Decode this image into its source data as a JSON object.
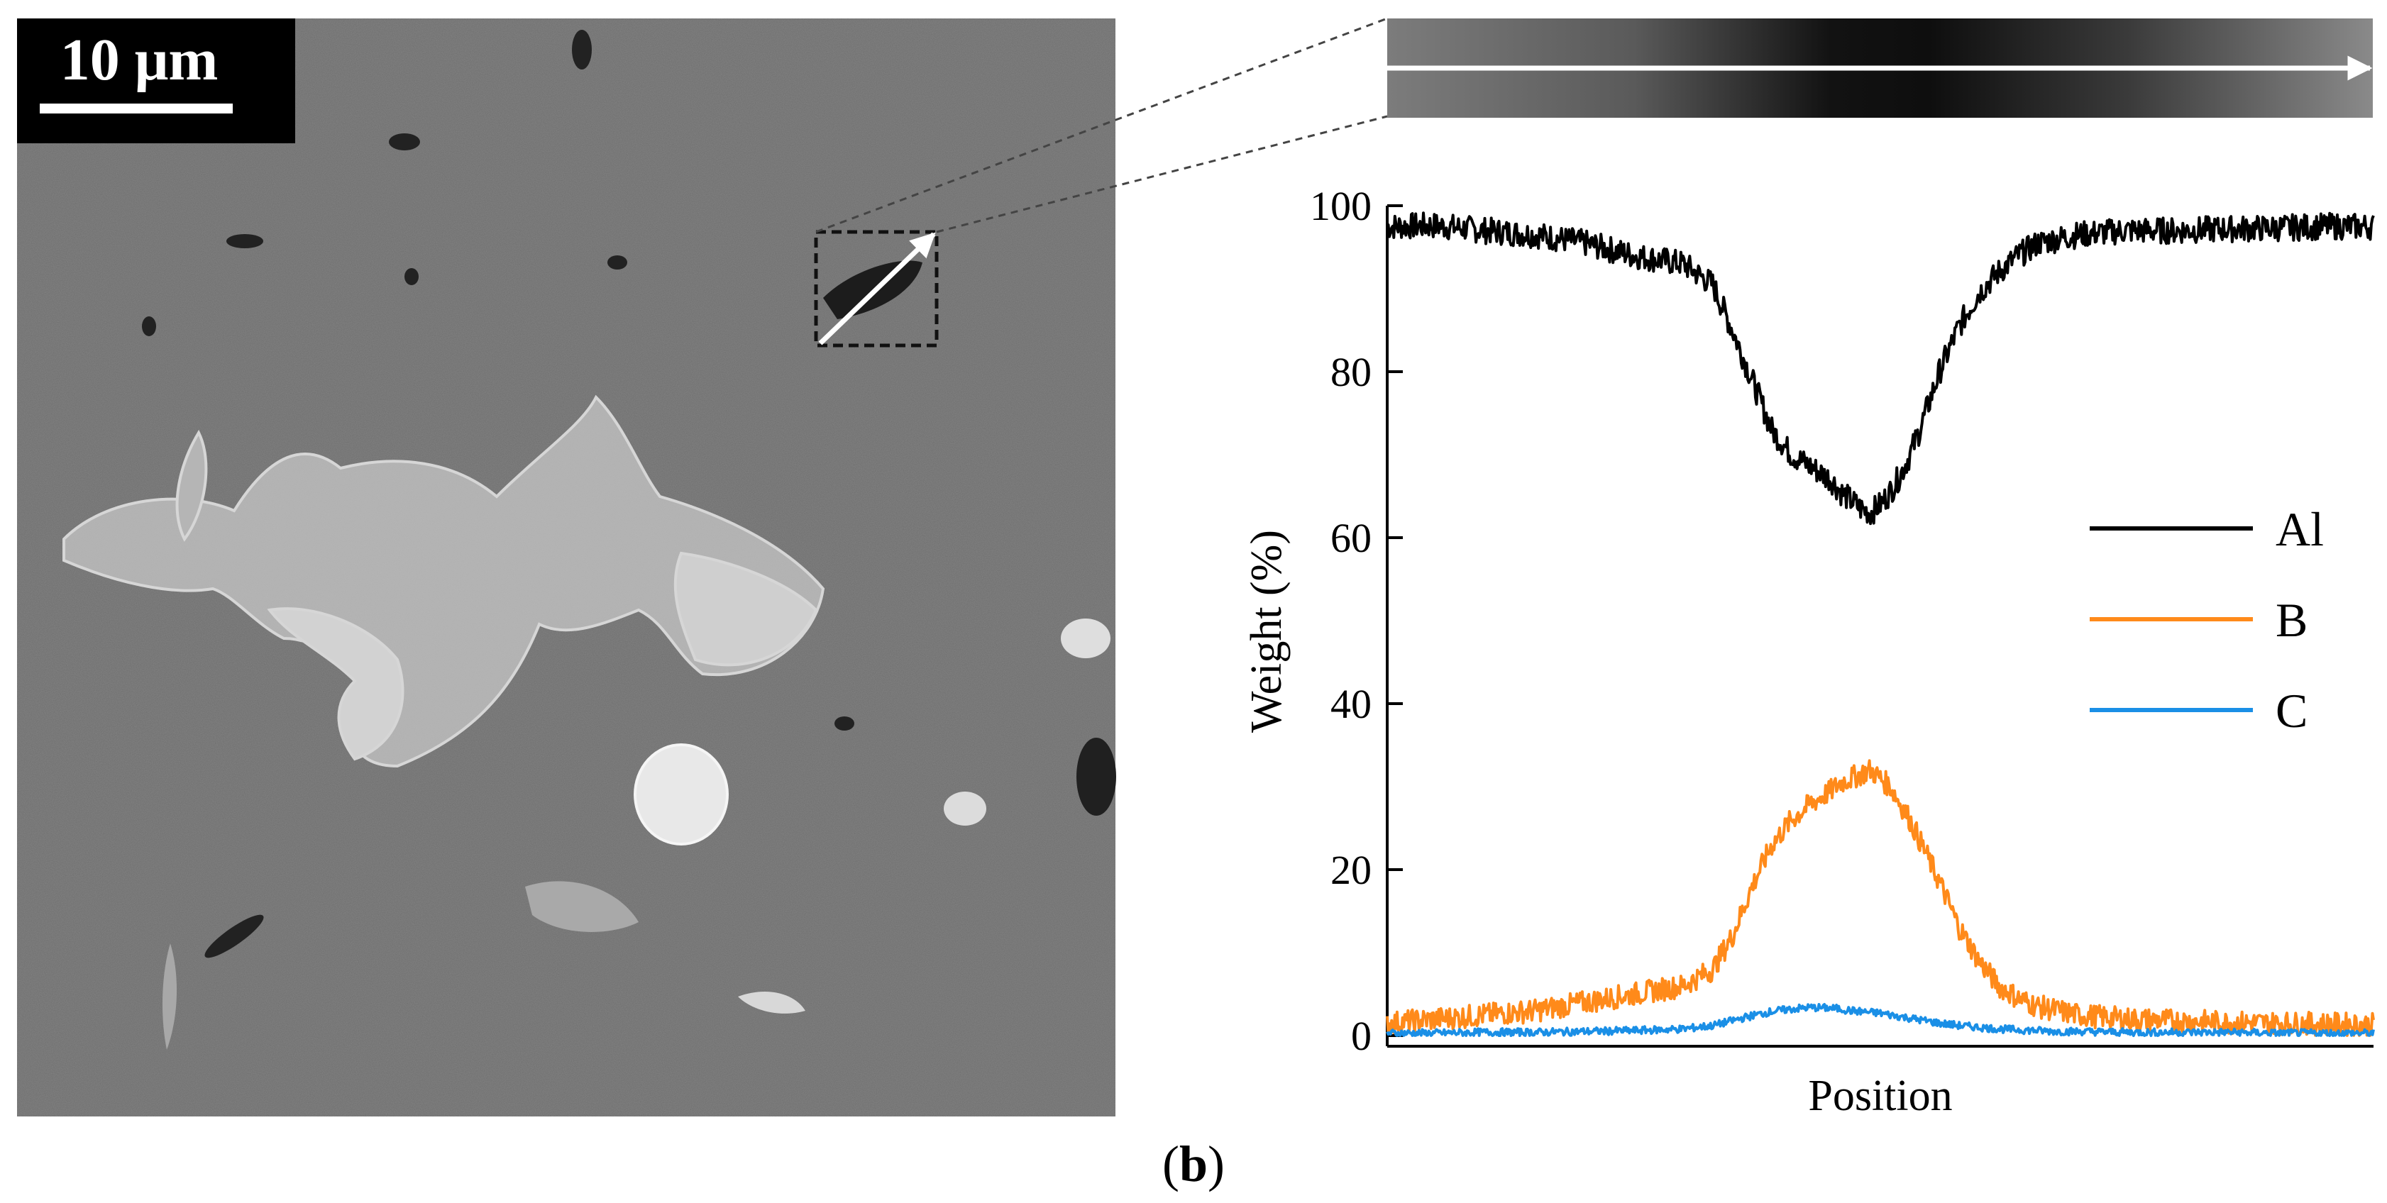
{
  "figure": {
    "panel_label_open": "(",
    "panel_label_letter": "b",
    "panel_label_close": ")"
  },
  "sem_image": {
    "scale_bar_label": "10 μm",
    "description_colors": {
      "matrix": "#6e6e6e",
      "particle": "#c8c8c8",
      "scale_box": "#000000"
    }
  },
  "line_profile": {
    "arrow_color": "#ffffff"
  },
  "chart_data": {
    "type": "line",
    "xlabel": "Position",
    "ylabel": "Weight (%)",
    "ylim": [
      0,
      100
    ],
    "yticks": [
      0,
      20,
      40,
      60,
      80,
      100
    ],
    "x_range": [
      0,
      100
    ],
    "legend_position": "right",
    "series": [
      {
        "name": "Al",
        "color": "#000000",
        "x": [
          0,
          5,
          10,
          15,
          20,
          25,
          30,
          33,
          35,
          37,
          39,
          41,
          43,
          45,
          46,
          47,
          48,
          49,
          50,
          51,
          52,
          53,
          54,
          55,
          56,
          58,
          60,
          62,
          64,
          66,
          68,
          70,
          75,
          80,
          85,
          90,
          95,
          100
        ],
        "values": [
          97.5,
          97.6,
          97.0,
          96.5,
          95.5,
          94.0,
          93.0,
          90.5,
          85.0,
          79.0,
          73.0,
          70.0,
          68.5,
          67.0,
          65.5,
          64.5,
          63.5,
          63.0,
          64.0,
          65.5,
          67.5,
          70.0,
          73.0,
          76.5,
          80.0,
          85.5,
          89.5,
          92.0,
          94.0,
          95.5,
          96.0,
          96.5,
          97.0,
          97.0,
          97.2,
          97.3,
          97.5,
          97.5
        ]
      },
      {
        "name": "B",
        "color": "#ff8a1a",
        "x": [
          0,
          5,
          10,
          15,
          20,
          25,
          30,
          33,
          35,
          37,
          39,
          41,
          43,
          45,
          46,
          47,
          48,
          49,
          50,
          51,
          52,
          53,
          54,
          55,
          56,
          58,
          60,
          62,
          64,
          66,
          68,
          70,
          75,
          80,
          85,
          90,
          95,
          100
        ],
        "values": [
          1.5,
          2.0,
          2.5,
          3.0,
          4.0,
          5.0,
          6.0,
          8.0,
          12.0,
          18.0,
          23.0,
          26.0,
          28.0,
          29.5,
          30.5,
          31.0,
          31.5,
          32.0,
          31.0,
          30.0,
          28.0,
          26.0,
          23.5,
          21.0,
          18.5,
          13.0,
          9.0,
          6.0,
          4.5,
          3.5,
          3.0,
          2.5,
          2.0,
          1.8,
          1.6,
          1.5,
          1.4,
          1.3
        ]
      },
      {
        "name": "C",
        "color": "#1a8fe6",
        "x": [
          0,
          5,
          10,
          15,
          20,
          25,
          30,
          33,
          35,
          37,
          39,
          41,
          43,
          45,
          46,
          47,
          48,
          49,
          50,
          51,
          52,
          53,
          54,
          55,
          56,
          58,
          60,
          62,
          64,
          66,
          68,
          70,
          75,
          80,
          85,
          90,
          95,
          100
        ],
        "values": [
          0.3,
          0.3,
          0.4,
          0.4,
          0.5,
          0.6,
          0.8,
          1.2,
          1.8,
          2.4,
          2.9,
          3.2,
          3.4,
          3.3,
          3.2,
          3.0,
          2.9,
          2.8,
          2.7,
          2.5,
          2.3,
          2.1,
          1.9,
          1.7,
          1.5,
          1.2,
          1.0,
          0.8,
          0.7,
          0.6,
          0.5,
          0.5,
          0.4,
          0.4,
          0.4,
          0.3,
          0.3,
          0.3
        ]
      }
    ]
  }
}
